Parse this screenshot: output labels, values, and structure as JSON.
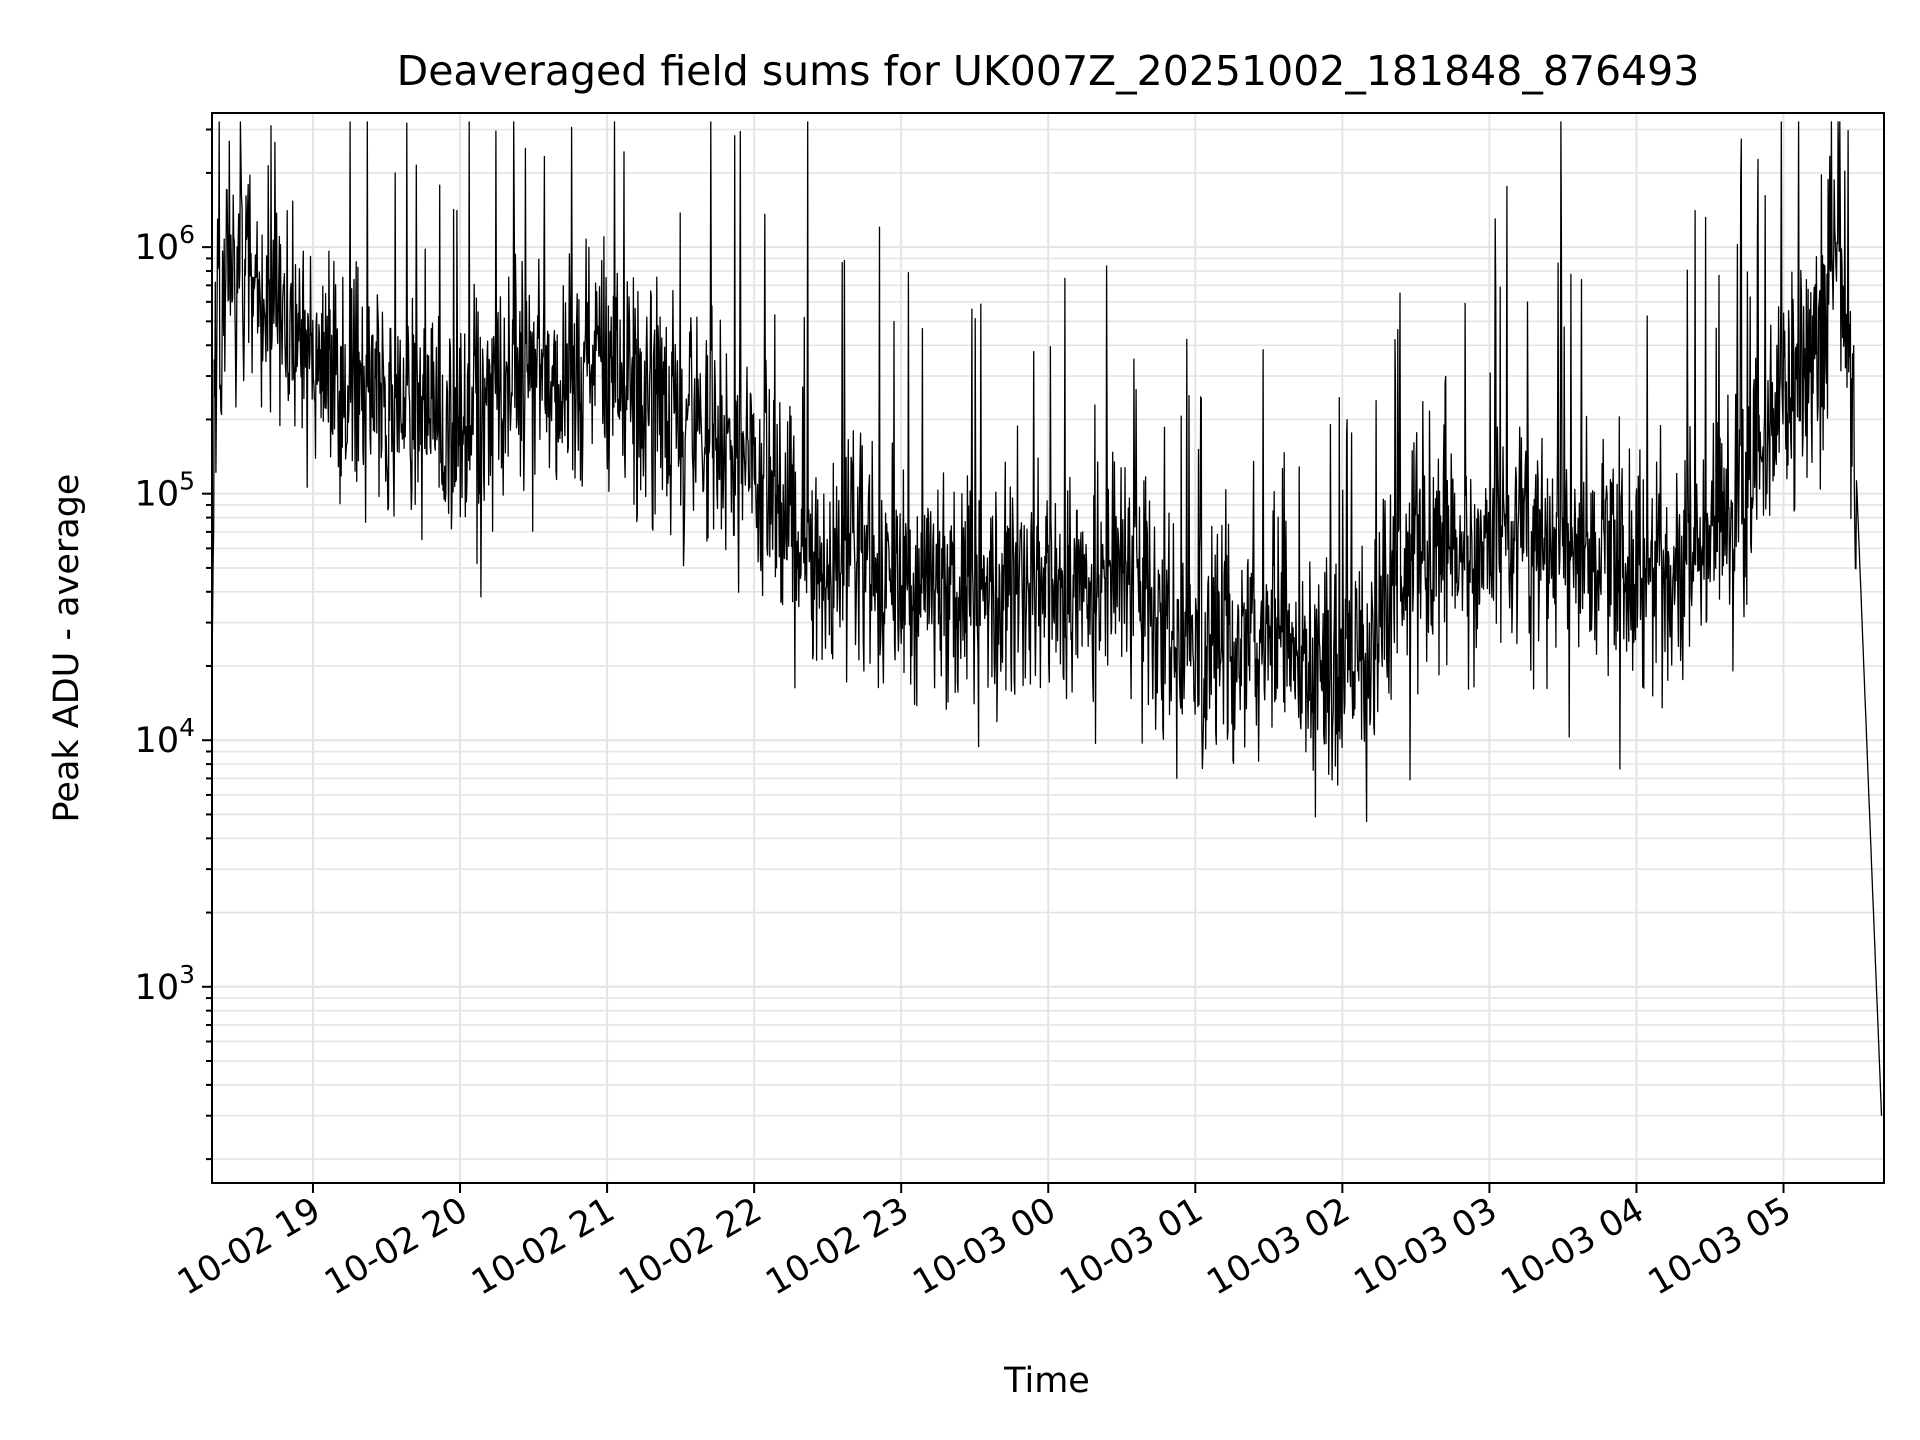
{
  "chart_data": {
    "type": "line",
    "title": "Deaveraged field sums for UK007Z_20251002_181848_876493",
    "xlabel": "Time",
    "ylabel": "Peak ADU - average",
    "y_scale": "log",
    "ylim": [
      160,
      3500000
    ],
    "xlim": [
      "2025-10-02 18:18:48",
      "2025-10-03 05:41:00"
    ],
    "grid": true,
    "x_tick_labels": [
      "10-02 19",
      "10-02 20",
      "10-02 21",
      "10-02 22",
      "10-02 23",
      "10-03 00",
      "10-03 01",
      "10-03 02",
      "10-03 03",
      "10-03 04",
      "10-03 05"
    ],
    "y_ticks": [
      {
        "value": 1000,
        "base": "10",
        "exp": "3"
      },
      {
        "value": 10000,
        "base": "10",
        "exp": "4"
      },
      {
        "value": 100000,
        "base": "10",
        "exp": "5"
      },
      {
        "value": 1000000,
        "base": "10",
        "exp": "6"
      }
    ],
    "line_color": "#000000",
    "series": [
      {
        "x": [
          "2025-10-02 18:18:48",
          "2025-10-02 18:20",
          "2025-10-02 18:25",
          "2025-10-02 18:30",
          "2025-10-02 18:40",
          "2025-10-02 18:50",
          "2025-10-02 19:00",
          "2025-10-02 19:15",
          "2025-10-02 19:30",
          "2025-10-02 19:45",
          "2025-10-02 20:00",
          "2025-10-02 20:15",
          "2025-10-02 20:30",
          "2025-10-02 20:45",
          "2025-10-02 21:00",
          "2025-10-02 21:15",
          "2025-10-02 21:30",
          "2025-10-02 21:45",
          "2025-10-02 22:00",
          "2025-10-02 22:15",
          "2025-10-02 22:30",
          "2025-10-02 22:45",
          "2025-10-02 23:00",
          "2025-10-02 23:15",
          "2025-10-02 23:30",
          "2025-10-02 23:45",
          "2025-10-03 00:00",
          "2025-10-03 00:15",
          "2025-10-03 00:30",
          "2025-10-03 00:45",
          "2025-10-03 01:00",
          "2025-10-03 01:15",
          "2025-10-03 01:30",
          "2025-10-03 01:45",
          "2025-10-03 02:00",
          "2025-10-03 02:15",
          "2025-10-03 02:30",
          "2025-10-03 02:45",
          "2025-10-03 03:00",
          "2025-10-03 03:15",
          "2025-10-03 03:30",
          "2025-10-03 03:45",
          "2025-10-03 04:00",
          "2025-10-03 04:15",
          "2025-10-03 04:30",
          "2025-10-03 04:45",
          "2025-10-03 05:00",
          "2025-10-03 05:15",
          "2025-10-03 05:22",
          "2025-10-03 05:30",
          "2025-10-03 05:36",
          "2025-10-03 05:40"
        ],
        "y": [
          20000,
          250000,
          700000,
          800000,
          600000,
          500000,
          350000,
          250000,
          200000,
          220000,
          200000,
          250000,
          300000,
          300000,
          300000,
          250000,
          200000,
          180000,
          120000,
          80000,
          50000,
          60000,
          40000,
          40000,
          40000,
          50000,
          40000,
          35000,
          60000,
          30000,
          20000,
          25000,
          30000,
          20000,
          18000,
          30000,
          50000,
          60000,
          60000,
          60000,
          70000,
          60000,
          50000,
          50000,
          60000,
          100000,
          250000,
          400000,
          1500000,
          100000,
          3000,
          300
        ]
      }
    ]
  }
}
